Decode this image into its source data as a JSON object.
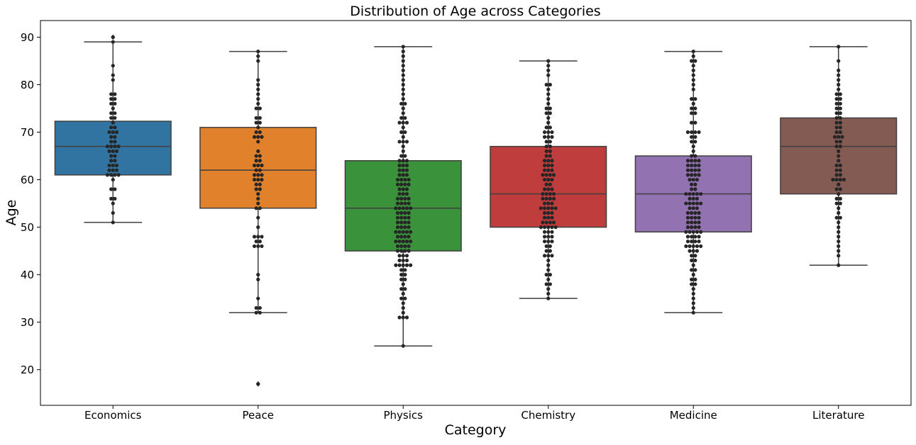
{
  "chart_data": {
    "type": "box",
    "title": "Distribution of Age across Categories",
    "xlabel": "Category",
    "ylabel": "Age",
    "ylim": [
      12.5,
      93.5
    ],
    "yticks": [
      20,
      30,
      40,
      50,
      60,
      70,
      80,
      90
    ],
    "grid": false,
    "overlay": "swarm",
    "categories": [
      "Economics",
      "Peace",
      "Physics",
      "Chemistry",
      "Medicine",
      "Literature"
    ],
    "colors": [
      "#3274a1",
      "#e1812c",
      "#3a923a",
      "#c03d3e",
      "#9372b2",
      "#845b53"
    ],
    "boxes": [
      {
        "q1": 61,
        "median": 67,
        "q3": 72.3,
        "whisker_low": 51,
        "whisker_high": 89,
        "outliers": [
          90
        ]
      },
      {
        "q1": 54,
        "median": 62,
        "q3": 71,
        "whisker_low": 32,
        "whisker_high": 87,
        "outliers": [
          17
        ]
      },
      {
        "q1": 45,
        "median": 54,
        "q3": 64,
        "whisker_low": 25,
        "whisker_high": 88,
        "outliers": []
      },
      {
        "q1": 50,
        "median": 57,
        "q3": 67,
        "whisker_low": 35,
        "whisker_high": 85,
        "outliers": []
      },
      {
        "q1": 49,
        "median": 57,
        "q3": 65,
        "whisker_low": 32,
        "whisker_high": 87,
        "outliers": []
      },
      {
        "q1": 57,
        "median": 67,
        "q3": 73,
        "whisker_low": 42,
        "whisker_high": 88,
        "outliers": []
      }
    ],
    "swarm": [
      [
        51,
        53,
        55,
        56,
        56,
        58,
        58,
        60,
        61,
        61,
        61,
        61,
        62,
        62,
        62,
        63,
        63,
        63,
        64,
        64,
        65,
        65,
        66,
        66,
        66,
        67,
        67,
        67,
        67,
        68,
        68,
        69,
        69,
        70,
        70,
        70,
        71,
        71,
        72,
        73,
        73,
        74,
        74,
        75,
        76,
        76,
        77,
        77,
        78,
        78,
        81,
        82,
        84,
        89,
        90
      ],
      [
        17,
        32,
        32,
        33,
        33,
        35,
        39,
        40,
        46,
        46,
        46,
        47,
        47,
        48,
        48,
        48,
        50,
        52,
        54,
        54,
        55,
        56,
        57,
        58,
        58,
        59,
        59,
        60,
        60,
        60,
        61,
        61,
        61,
        62,
        62,
        63,
        63,
        63,
        64,
        64,
        65,
        65,
        66,
        68,
        69,
        69,
        69,
        70,
        70,
        71,
        72,
        72,
        73,
        73,
        75,
        75,
        76,
        77,
        78,
        79,
        80,
        81,
        85,
        86,
        87
      ],
      [
        25,
        31,
        31,
        31,
        32,
        33,
        34,
        35,
        35,
        36,
        37,
        37,
        38,
        39,
        39,
        40,
        40,
        41,
        41,
        42,
        42,
        42,
        42,
        42,
        43,
        43,
        43,
        44,
        44,
        44,
        45,
        45,
        45,
        45,
        46,
        46,
        46,
        46,
        47,
        47,
        47,
        47,
        47,
        48,
        48,
        48,
        48,
        49,
        49,
        49,
        49,
        49,
        50,
        50,
        50,
        50,
        51,
        51,
        51,
        51,
        52,
        52,
        52,
        52,
        53,
        53,
        53,
        53,
        54,
        54,
        54,
        54,
        54,
        55,
        55,
        55,
        55,
        56,
        56,
        56,
        56,
        57,
        57,
        57,
        58,
        58,
        58,
        59,
        59,
        59,
        59,
        60,
        60,
        60,
        60,
        61,
        61,
        61,
        62,
        62,
        62,
        63,
        63,
        63,
        64,
        64,
        64,
        65,
        65,
        66,
        67,
        68,
        68,
        68,
        69,
        70,
        70,
        71,
        72,
        72,
        72,
        73,
        73,
        74,
        75,
        76,
        76,
        77,
        78,
        79,
        80,
        81,
        82,
        83,
        84,
        85,
        86,
        87,
        88
      ],
      [
        35,
        36,
        37,
        38,
        38,
        39,
        40,
        40,
        41,
        42,
        43,
        44,
        44,
        44,
        45,
        45,
        46,
        46,
        47,
        47,
        47,
        48,
        48,
        48,
        49,
        49,
        49,
        50,
        50,
        50,
        50,
        50,
        51,
        51,
        51,
        51,
        52,
        52,
        52,
        53,
        53,
        53,
        54,
        54,
        54,
        54,
        54,
        55,
        55,
        55,
        56,
        56,
        56,
        56,
        57,
        57,
        57,
        57,
        58,
        58,
        58,
        59,
        59,
        60,
        60,
        60,
        61,
        61,
        61,
        61,
        62,
        62,
        62,
        63,
        63,
        63,
        64,
        64,
        64,
        65,
        65,
        66,
        66,
        67,
        67,
        68,
        68,
        69,
        69,
        69,
        70,
        70,
        70,
        71,
        71,
        72,
        73,
        74,
        74,
        75,
        75,
        76,
        77,
        78,
        79,
        80,
        80,
        82,
        83,
        84,
        85
      ],
      [
        32,
        33,
        34,
        35,
        36,
        37,
        38,
        38,
        39,
        39,
        40,
        41,
        41,
        42,
        43,
        43,
        44,
        44,
        45,
        45,
        45,
        46,
        46,
        46,
        46,
        46,
        47,
        47,
        47,
        47,
        48,
        48,
        48,
        48,
        49,
        49,
        49,
        49,
        49,
        50,
        50,
        50,
        50,
        51,
        51,
        51,
        51,
        52,
        52,
        52,
        52,
        53,
        53,
        53,
        53,
        54,
        54,
        54,
        55,
        55,
        55,
        55,
        55,
        56,
        56,
        56,
        57,
        57,
        57,
        57,
        57,
        58,
        58,
        59,
        59,
        60,
        60,
        60,
        61,
        61,
        61,
        61,
        62,
        62,
        62,
        62,
        63,
        63,
        63,
        63,
        64,
        64,
        64,
        64,
        65,
        65,
        66,
        67,
        68,
        68,
        69,
        69,
        70,
        70,
        70,
        70,
        72,
        72,
        74,
        74,
        75,
        75,
        76,
        77,
        77,
        79,
        80,
        81,
        82,
        83,
        84,
        85,
        85,
        86,
        87
      ],
      [
        42,
        44,
        45,
        46,
        47,
        48,
        49,
        50,
        51,
        52,
        52,
        53,
        54,
        55,
        55,
        56,
        56,
        57,
        58,
        58,
        59,
        60,
        60,
        60,
        60,
        61,
        61,
        62,
        62,
        63,
        63,
        64,
        65,
        66,
        67,
        67,
        68,
        68,
        69,
        69,
        69,
        70,
        70,
        71,
        71,
        72,
        72,
        73,
        73,
        74,
        74,
        75,
        75,
        76,
        76,
        77,
        77,
        78,
        78,
        79,
        80,
        81,
        82,
        83,
        85,
        88
      ]
    ]
  }
}
